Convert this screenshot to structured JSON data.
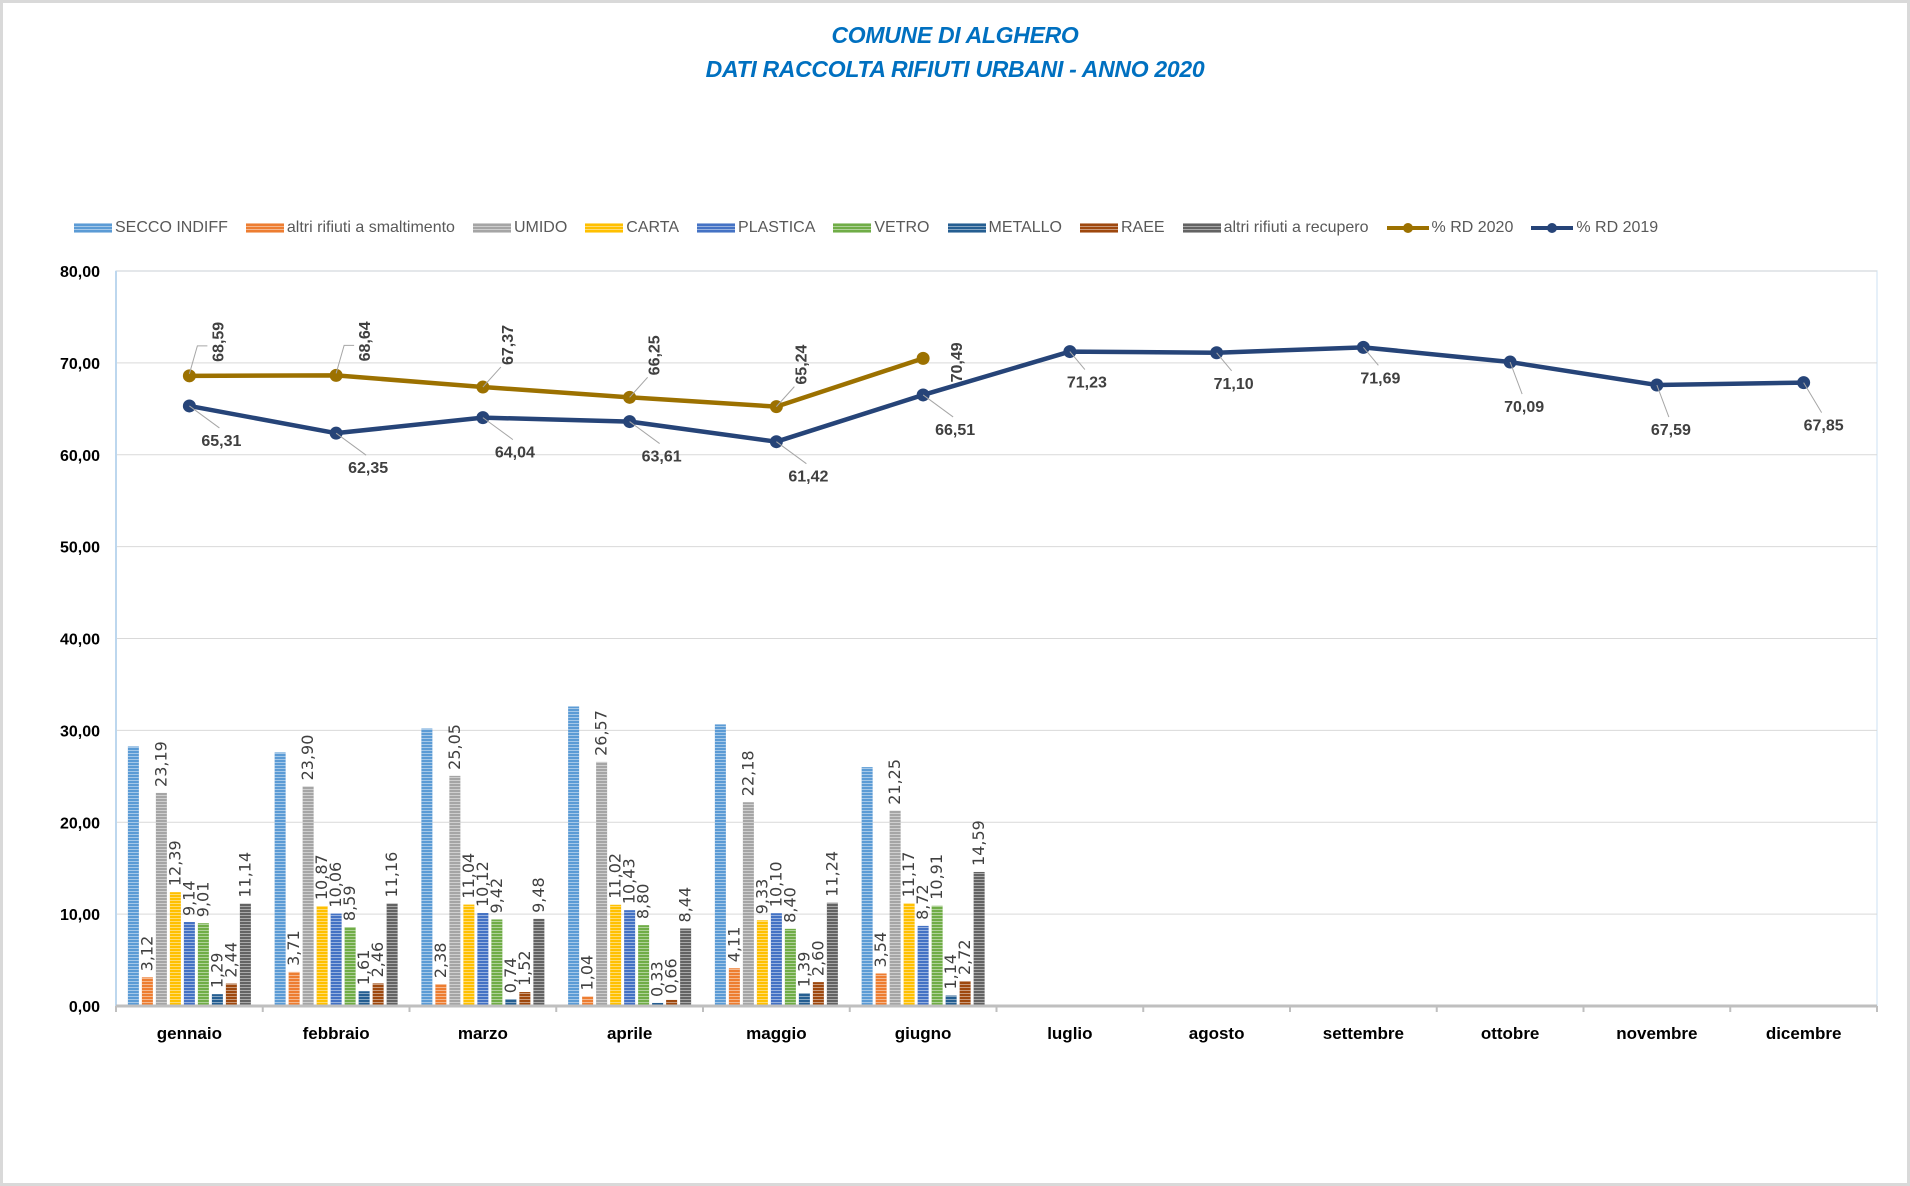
{
  "title_line1": "COMUNE DI ALGHERO",
  "title_line2": "DATI RACCOLTA RIFIUTI URBANI -  ANNO 2020",
  "chart_data": {
    "type": "bar+line",
    "title": "COMUNE DI ALGHERO — DATI RACCOLTA RIFIUTI URBANI -  ANNO 2020",
    "xlabel": "",
    "ylabel": "",
    "ylim": [
      0,
      80
    ],
    "y_ticks": [
      "0,00",
      "10,00",
      "20,00",
      "30,00",
      "40,00",
      "50,00",
      "60,00",
      "70,00",
      "80,00"
    ],
    "y_tick_values": [
      0,
      10,
      20,
      30,
      40,
      50,
      60,
      70,
      80
    ],
    "grid": true,
    "legend_position": "top",
    "categories": [
      "gennaio",
      "febbraio",
      "marzo",
      "aprile",
      "maggio",
      "giugno",
      "luglio",
      "agosto",
      "settembre",
      "ottobre",
      "novembre",
      "dicembre"
    ],
    "bar_series": [
      {
        "name": "SECCO INDIFF",
        "color": "#5b9bd5",
        "labeled": false,
        "values": [
          28.25,
          27.6,
          30.2,
          32.6,
          30.65,
          26.0,
          null,
          null,
          null,
          null,
          null,
          null
        ],
        "labels": []
      },
      {
        "name": "altri rifiuti a smaltimento",
        "color": "#ed7d31",
        "labeled": true,
        "values": [
          3.12,
          3.71,
          2.38,
          1.04,
          4.11,
          3.54,
          null,
          null,
          null,
          null,
          null,
          null
        ],
        "labels": [
          "3,12",
          "3,71",
          "2,38",
          "1,04",
          "4,11",
          "3,54"
        ]
      },
      {
        "name": "UMIDO",
        "color": "#a5a5a5",
        "labeled": true,
        "values": [
          23.19,
          23.9,
          25.05,
          26.57,
          22.18,
          21.25,
          null,
          null,
          null,
          null,
          null,
          null
        ],
        "labels": [
          "23,19",
          "23,90",
          "25,05",
          "26,57",
          "22,18",
          "21,25"
        ]
      },
      {
        "name": "CARTA",
        "color": "#ffc000",
        "labeled": true,
        "values": [
          12.39,
          10.87,
          11.04,
          11.02,
          9.33,
          11.17,
          null,
          null,
          null,
          null,
          null,
          null
        ],
        "labels": [
          "12,39",
          "10,87",
          "11,04",
          "11,02",
          "9,33",
          "11,17"
        ]
      },
      {
        "name": "PLASTICA",
        "color": "#4472c4",
        "labeled": true,
        "values": [
          9.14,
          10.06,
          10.12,
          10.43,
          10.1,
          8.72,
          null,
          null,
          null,
          null,
          null,
          null
        ],
        "labels": [
          "9,14",
          "10,06",
          "10,12",
          "10,43",
          "10,10",
          "8,72"
        ]
      },
      {
        "name": "VETRO",
        "color": "#70ad47",
        "labeled": true,
        "values": [
          9.01,
          8.59,
          9.42,
          8.8,
          8.4,
          10.91,
          null,
          null,
          null,
          null,
          null,
          null
        ],
        "labels": [
          "9,01",
          "8,59",
          "9,42",
          "8,80",
          "8,40",
          "10,91"
        ]
      },
      {
        "name": "METALLO",
        "color": "#255e91",
        "labeled": true,
        "values": [
          1.29,
          1.61,
          0.74,
          0.33,
          1.39,
          1.14,
          null,
          null,
          null,
          null,
          null,
          null
        ],
        "labels": [
          "1,29",
          "1,61",
          "0,74",
          "0,33",
          "1,39",
          "1,14"
        ]
      },
      {
        "name": "RAEE",
        "color": "#9e480e",
        "labeled": true,
        "values": [
          2.44,
          2.46,
          1.52,
          0.66,
          2.6,
          2.72,
          null,
          null,
          null,
          null,
          null,
          null
        ],
        "labels": [
          "2,44",
          "2,46",
          "1,52",
          "0,66",
          "2,60",
          "2,72"
        ]
      },
      {
        "name": "altri rifiuti a recupero",
        "color": "#636363",
        "labeled": true,
        "values": [
          11.14,
          11.16,
          9.48,
          8.44,
          11.24,
          14.59,
          null,
          null,
          null,
          null,
          null,
          null
        ],
        "labels": [
          "11,14",
          "11,16",
          "9,48",
          "8,44",
          "11,24",
          "14,59"
        ]
      }
    ],
    "line_series": [
      {
        "name": "% RD 2020",
        "color": "#9c7100",
        "values": [
          68.59,
          68.64,
          67.37,
          66.25,
          65.24,
          70.49
        ],
        "labels": [
          "68,59",
          "68,64",
          "67,37",
          "66,25",
          "65,24",
          "70,49"
        ]
      },
      {
        "name": "% RD 2019",
        "color": "#264478",
        "values": [
          65.31,
          62.35,
          64.04,
          63.61,
          61.42,
          66.51,
          71.23,
          71.1,
          71.69,
          70.09,
          67.59,
          67.85
        ],
        "labels": [
          "65,31",
          "62,35",
          "64,04",
          "63,61",
          "61,42",
          "66,51",
          "71,23",
          "71,10",
          "71,69",
          "70,09",
          "67,59",
          "67,85"
        ]
      }
    ]
  }
}
